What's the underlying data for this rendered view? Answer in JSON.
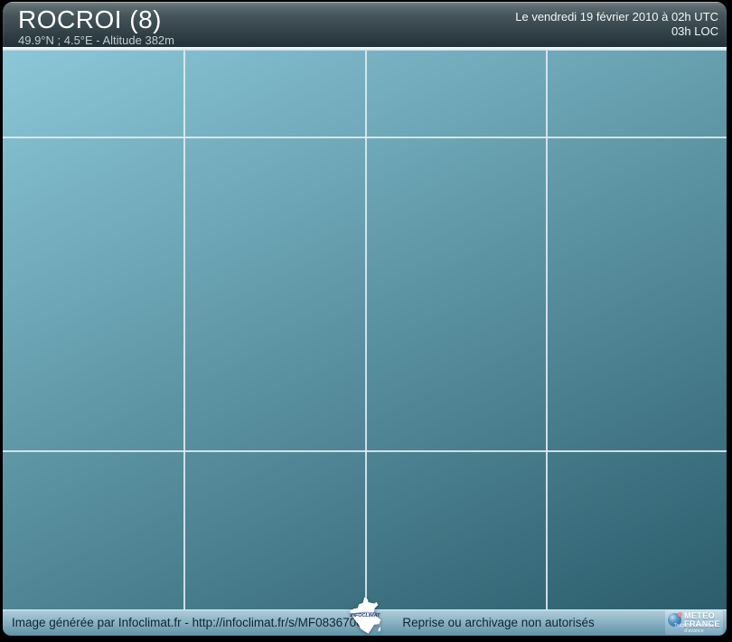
{
  "header": {
    "station_name": "ROCROI (8)",
    "station_details": "49.9°N ; 4.5°E - Altitude 382m",
    "datetime_utc": "Le vendredi 19 février 2010 à 02h UTC",
    "datetime_local": "03h LOC"
  },
  "chart_data": {
    "type": "line",
    "title": "",
    "xlabel": "",
    "ylabel": "",
    "categories": [],
    "series": [],
    "grid": {
      "visible": true,
      "vertical_percent": [
        25,
        50,
        75
      ],
      "horizontal_percent": [
        15.4,
        71.5
      ]
    },
    "legend": "none"
  },
  "footer": {
    "attribution": "Image générée par Infoclimat.fr - http://infoclimat.fr/s/MF08367002",
    "rights": "Reprise ou archivage non autorisés",
    "infoclimat_logo_text": "INFOCLIMAT",
    "meteo_france": {
      "line1": "METEO",
      "line2": "FRANCE",
      "tagline": "Toujours un temps d'avance"
    }
  },
  "colors": {
    "frame": "#000000",
    "header-grad-top": "#68777a",
    "header-grad-mid": "#45555b",
    "header-grad-bottom": "#233138",
    "separator": "#dcedf2",
    "chart-grad-start": "#8bc7d7",
    "chart-grad-end": "#2b5d6c",
    "gridline": "#e2edf0",
    "footer-grad-top": "#b0d0dc",
    "footer-grad-bottom": "#5d92a7",
    "footer-text": "#102430"
  }
}
